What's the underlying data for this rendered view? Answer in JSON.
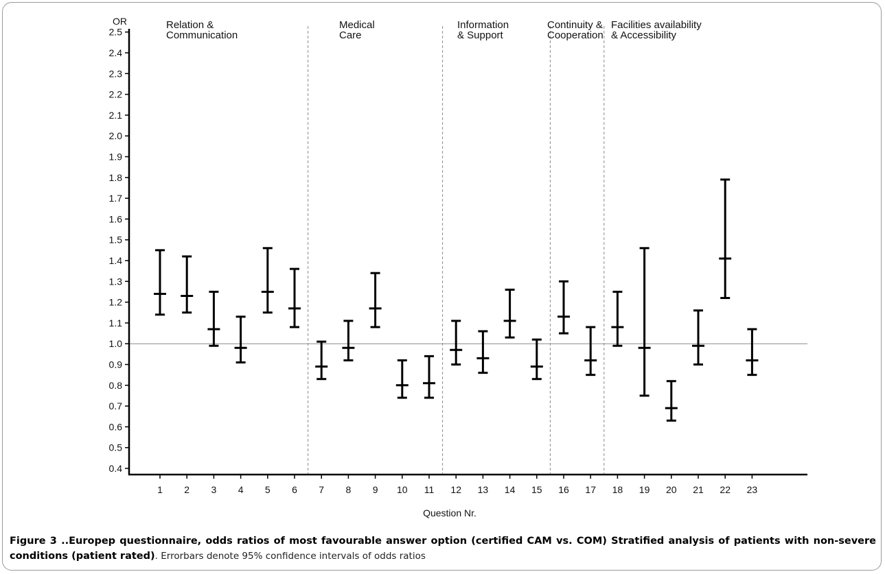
{
  "chart_data": {
    "type": "errorbar",
    "title": "",
    "ylabel": "OR",
    "xlabel": "Question Nr.",
    "ylim": [
      0.4,
      2.5
    ],
    "yticks": [
      "0.4",
      "0.5",
      "0.6",
      "0.7",
      "0.8",
      "0.9",
      "1.0",
      "1.1",
      "1.2",
      "1.3",
      "1.4",
      "1.5",
      "1.6",
      "1.7",
      "1.8",
      "1.9",
      "2.0",
      "2.1",
      "2.2",
      "2.3",
      "2.4",
      "2.5"
    ],
    "reference_line": 1.0,
    "grid": false,
    "categories": [
      "1",
      "2",
      "3",
      "4",
      "5",
      "6",
      "7",
      "8",
      "9",
      "10",
      "11",
      "12",
      "13",
      "14",
      "15",
      "16",
      "17",
      "18",
      "19",
      "20",
      "21",
      "22",
      "23"
    ],
    "points": [
      {
        "q": "1",
        "or": 1.24,
        "lower": 1.14,
        "upper": 1.45
      },
      {
        "q": "2",
        "or": 1.23,
        "lower": 1.15,
        "upper": 1.42
      },
      {
        "q": "3",
        "or": 1.07,
        "lower": 0.99,
        "upper": 1.25
      },
      {
        "q": "4",
        "or": 0.98,
        "lower": 0.91,
        "upper": 1.13
      },
      {
        "q": "5",
        "or": 1.25,
        "lower": 1.15,
        "upper": 1.46
      },
      {
        "q": "6",
        "or": 1.17,
        "lower": 1.08,
        "upper": 1.36
      },
      {
        "q": "7",
        "or": 0.89,
        "lower": 0.83,
        "upper": 1.01
      },
      {
        "q": "8",
        "or": 0.98,
        "lower": 0.92,
        "upper": 1.11
      },
      {
        "q": "9",
        "or": 1.17,
        "lower": 1.08,
        "upper": 1.34
      },
      {
        "q": "10",
        "or": 0.8,
        "lower": 0.74,
        "upper": 0.92
      },
      {
        "q": "11",
        "or": 0.81,
        "lower": 0.74,
        "upper": 0.94
      },
      {
        "q": "12",
        "or": 0.97,
        "lower": 0.9,
        "upper": 1.11
      },
      {
        "q": "13",
        "or": 0.93,
        "lower": 0.86,
        "upper": 1.06
      },
      {
        "q": "14",
        "or": 1.11,
        "lower": 1.03,
        "upper": 1.26
      },
      {
        "q": "15",
        "or": 0.89,
        "lower": 0.83,
        "upper": 1.02
      },
      {
        "q": "16",
        "or": 1.13,
        "lower": 1.05,
        "upper": 1.3
      },
      {
        "q": "17",
        "or": 0.92,
        "lower": 0.85,
        "upper": 1.08
      },
      {
        "q": "18",
        "or": 1.08,
        "lower": 0.99,
        "upper": 1.25
      },
      {
        "q": "19",
        "or": 0.98,
        "lower": 0.75,
        "upper": 1.46
      },
      {
        "q": "20",
        "or": 0.69,
        "lower": 0.63,
        "upper": 0.82
      },
      {
        "q": "21",
        "or": 0.99,
        "lower": 0.9,
        "upper": 1.16
      },
      {
        "q": "22",
        "or": 1.41,
        "lower": 1.22,
        "upper": 1.79
      },
      {
        "q": "23",
        "or": 0.92,
        "lower": 0.85,
        "upper": 1.07
      }
    ],
    "groups": [
      {
        "lines": [
          "Relation &",
          "Communication"
        ],
        "first_q": 1
      },
      {
        "lines": [
          "Medical",
          "Care"
        ],
        "first_q": 7
      },
      {
        "lines": [
          "Information",
          "& Support"
        ],
        "first_q": 12
      },
      {
        "lines": [
          "Continuity &",
          "Cooperation"
        ],
        "first_q": 16
      },
      {
        "lines": [
          "Facilities availability",
          "& Accessibility"
        ],
        "first_q": 18
      }
    ],
    "dividers_after_q": [
      6,
      11,
      15,
      17
    ],
    "colors": {
      "bars": "#000000",
      "divider": "#8a8a8a",
      "reference": "#8a8a8a",
      "axis": "#000000"
    }
  },
  "caption": {
    "bold": "Figure 3 ..Europep questionnaire, odds ratios of most favourable answer option (certified CAM vs. COM) Stratified analysis of patients with non-severe conditions (patient rated)",
    "rest": ". Errorbars denote 95% confidence intervals of odds ratios"
  }
}
